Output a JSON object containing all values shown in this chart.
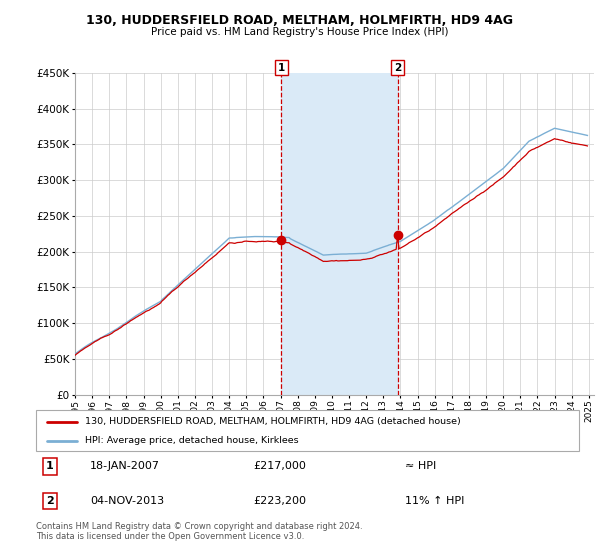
{
  "title": "130, HUDDERSFIELD ROAD, MELTHAM, HOLMFIRTH, HD9 4AG",
  "subtitle": "Price paid vs. HM Land Registry's House Price Index (HPI)",
  "legend_line1": "130, HUDDERSFIELD ROAD, MELTHAM, HOLMFIRTH, HD9 4AG (detached house)",
  "legend_line2": "HPI: Average price, detached house, Kirklees",
  "annotation1_date": "18-JAN-2007",
  "annotation1_price": "£217,000",
  "annotation1_hpi": "≈ HPI",
  "annotation2_date": "04-NOV-2013",
  "annotation2_price": "£223,200",
  "annotation2_hpi": "11% ↑ HPI",
  "footer": "Contains HM Land Registry data © Crown copyright and database right 2024.\nThis data is licensed under the Open Government Licence v3.0.",
  "ylim": [
    0,
    450000
  ],
  "yticks": [
    0,
    50000,
    100000,
    150000,
    200000,
    250000,
    300000,
    350000,
    400000,
    450000
  ],
  "ytick_labels": [
    "£0",
    "£50K",
    "£100K",
    "£150K",
    "£200K",
    "£250K",
    "£300K",
    "£350K",
    "£400K",
    "£450K"
  ],
  "house_color": "#cc0000",
  "hpi_color": "#7bafd4",
  "shade_color": "#daeaf7",
  "vline_color": "#cc0000",
  "annotation_box_color": "#cc0000",
  "sale1_x": 2007.05,
  "sale1_y": 217000,
  "sale2_x": 2013.84,
  "sale2_y": 223200,
  "xlim": [
    1995,
    2025.3
  ],
  "xticks": [
    1995,
    1996,
    1997,
    1998,
    1999,
    2000,
    2001,
    2002,
    2003,
    2004,
    2005,
    2006,
    2007,
    2008,
    2009,
    2010,
    2011,
    2012,
    2013,
    2014,
    2015,
    2016,
    2017,
    2018,
    2019,
    2020,
    2021,
    2022,
    2023,
    2024,
    2025
  ]
}
